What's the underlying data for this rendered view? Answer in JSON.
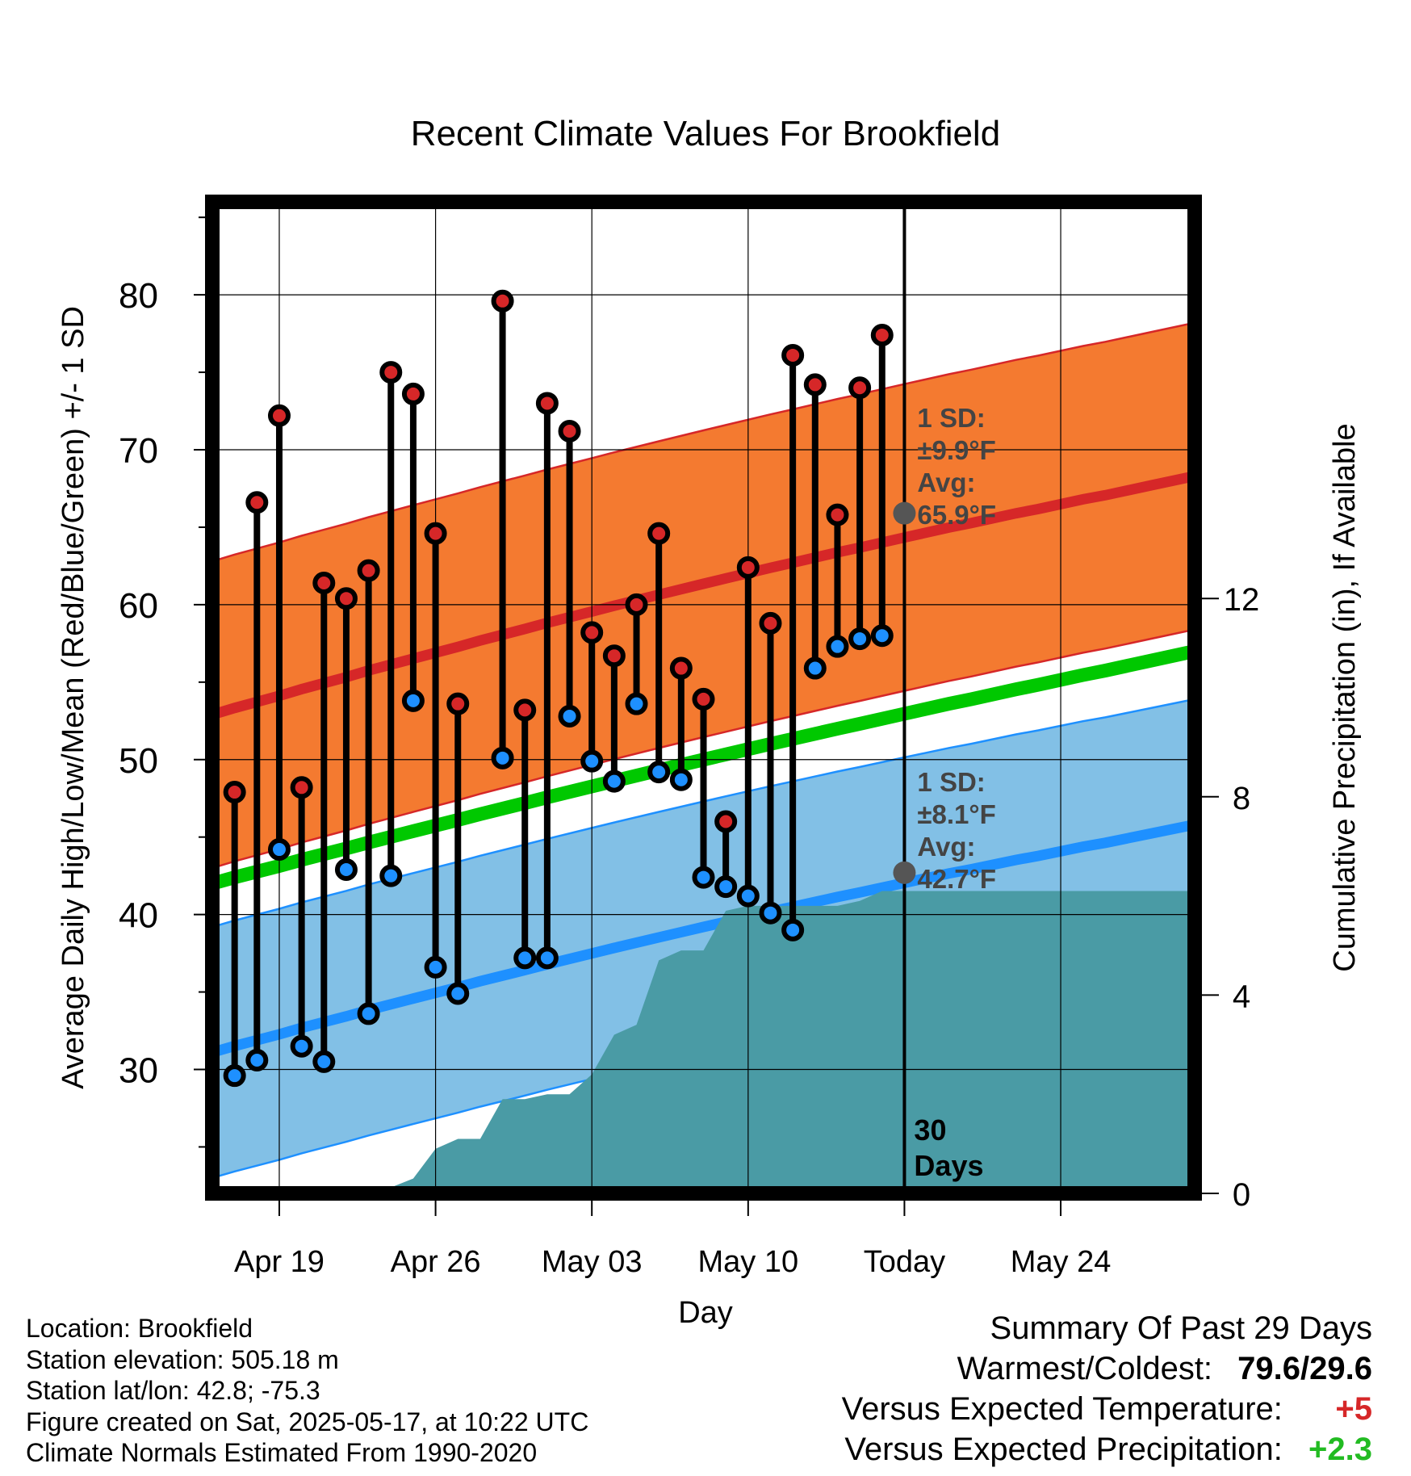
{
  "chart_data": {
    "type": "line",
    "title": "Recent Climate Values For Brookfield",
    "xlabel": "Day",
    "ylabel": "Average Daily High/Low/Mean (Red/Blue/Green) +/- 1 SD",
    "y2label": "Cumulative Precipitation (in), If Available",
    "xlim": [
      "2025-04-16",
      "2025-05-30"
    ],
    "ylim": [
      22,
      86
    ],
    "y2lim": [
      0,
      20
    ],
    "x_ticks": [
      {
        "date": "2025-04-19",
        "label": "Apr 19"
      },
      {
        "date": "2025-04-26",
        "label": "Apr 26"
      },
      {
        "date": "2025-05-03",
        "label": "May 03"
      },
      {
        "date": "2025-05-10",
        "label": "May 10"
      },
      {
        "date": "2025-05-17",
        "label": "Today"
      },
      {
        "date": "2025-05-24",
        "label": "May 24"
      }
    ],
    "y_ticks": [
      30,
      40,
      50,
      60,
      70,
      80
    ],
    "y2_ticks": [
      0,
      4,
      8,
      12
    ],
    "grid": true,
    "dates": [
      "2025-04-17",
      "2025-04-18",
      "2025-04-19",
      "2025-04-20",
      "2025-04-21",
      "2025-04-22",
      "2025-04-23",
      "2025-04-24",
      "2025-04-25",
      "2025-04-26",
      "2025-04-27",
      "2025-04-28",
      "2025-04-29",
      "2025-04-30",
      "2025-05-01",
      "2025-05-02",
      "2025-05-03",
      "2025-05-04",
      "2025-05-05",
      "2025-05-06",
      "2025-05-07",
      "2025-05-08",
      "2025-05-09",
      "2025-05-10",
      "2025-05-11",
      "2025-05-12",
      "2025-05-13",
      "2025-05-14",
      "2025-05-15",
      "2025-05-16"
    ],
    "daily_high": [
      47.9,
      66.6,
      72.2,
      48.2,
      61.4,
      60.4,
      62.2,
      75.0,
      73.6,
      64.6,
      53.6,
      null,
      79.6,
      53.2,
      73.0,
      71.2,
      58.2,
      56.7,
      60.0,
      64.6,
      55.9,
      53.9,
      46.0,
      62.4,
      58.8,
      76.1,
      74.2,
      65.8,
      74.0,
      77.4
    ],
    "daily_low": [
      29.6,
      30.6,
      44.2,
      31.5,
      30.5,
      42.9,
      33.6,
      42.5,
      53.8,
      36.6,
      34.9,
      null,
      50.1,
      37.2,
      37.2,
      52.8,
      49.9,
      48.6,
      53.6,
      49.2,
      48.7,
      42.4,
      41.8,
      41.2,
      40.1,
      39.0,
      55.9,
      57.3,
      57.8,
      58.0
    ],
    "normals_dates": [
      "2025-04-16",
      "2025-05-30"
    ],
    "normal_high_avg": [
      52.9,
      68.3
    ],
    "normal_high_sd": 9.9,
    "normal_low_avg": [
      31.1,
      45.8
    ],
    "normal_low_sd": 8.1,
    "normal_mean": [
      42.0,
      57.0
    ],
    "precip_cumulative": [
      [
        "2025-04-19",
        0.05
      ],
      [
        "2025-04-22",
        0.1
      ],
      [
        "2025-04-24",
        0.12
      ],
      [
        "2025-04-25",
        0.3
      ],
      [
        "2025-04-26",
        0.9
      ],
      [
        "2025-04-27",
        1.1
      ],
      [
        "2025-04-28",
        1.1
      ],
      [
        "2025-04-29",
        1.9
      ],
      [
        "2025-04-30",
        1.9
      ],
      [
        "2025-05-01",
        2.0
      ],
      [
        "2025-05-02",
        2.0
      ],
      [
        "2025-05-03",
        2.4
      ],
      [
        "2025-05-04",
        3.2
      ],
      [
        "2025-05-05",
        3.4
      ],
      [
        "2025-05-06",
        4.7
      ],
      [
        "2025-05-07",
        4.9
      ],
      [
        "2025-05-08",
        4.9
      ],
      [
        "2025-05-09",
        5.7
      ],
      [
        "2025-05-10",
        5.8
      ],
      [
        "2025-05-11",
        5.8
      ],
      [
        "2025-05-12",
        5.8
      ],
      [
        "2025-05-13",
        5.8
      ],
      [
        "2025-05-14",
        5.8
      ],
      [
        "2025-05-15",
        5.9
      ],
      [
        "2025-05-16",
        6.1
      ],
      [
        "2025-05-17",
        6.1
      ],
      [
        "2025-05-30",
        6.1
      ]
    ],
    "today": "2025-05-17",
    "today_label": [
      "30",
      "Days"
    ],
    "high_annotation": {
      "lines": [
        "1 SD:",
        "±9.9°F",
        "Avg:",
        "65.9°F"
      ],
      "avg": 65.9
    },
    "low_annotation": {
      "lines": [
        "1 SD:",
        "±8.1°F",
        "Avg:",
        "42.7°F"
      ],
      "avg": 42.7
    },
    "colors": {
      "high_band": "#f47a30",
      "high_line": "#d62728",
      "low_band": "#82c0e6",
      "low_line": "#1e90ff",
      "mean_line": "#00c800",
      "precip": "#4a9ba5",
      "high_dot": "#d62728",
      "low_dot": "#1e90ff",
      "annotation": "#444444"
    }
  },
  "info": {
    "location": "Location: Brookfield",
    "elevation": "Station elevation: 505.18 m",
    "latlon": "Station lat/lon: 42.8; -75.3",
    "created": "Figure created on Sat, 2025-05-17, at 10:22 UTC",
    "normals": "Climate Normals Estimated From 1990-2020"
  },
  "summary": {
    "title": "Summary Of Past 29 Days",
    "warm_cold_label": "Warmest/Coldest:",
    "warm_cold_value": "79.6/29.6",
    "temp_label": "Versus Expected Temperature:",
    "temp_value": "+5",
    "temp_color": "#d62728",
    "precip_label": "Versus Expected Precipitation:",
    "precip_value": "+2.3",
    "precip_color": "#22bb22"
  }
}
